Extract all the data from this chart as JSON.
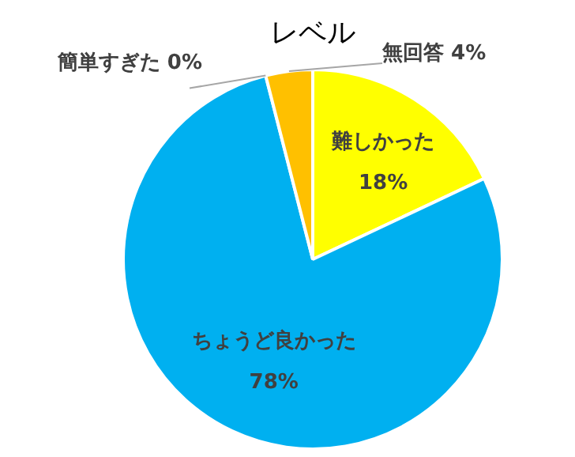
{
  "chart_data": {
    "type": "pie",
    "title": "レベル",
    "categories": [
      "難しかった",
      "ちょうど良かった",
      "簡単すぎた",
      "無回答"
    ],
    "values": [
      18,
      78,
      0,
      4
    ],
    "colors": [
      "#ffff00",
      "#00b0f0",
      "#a5a5a5",
      "#ffc000"
    ],
    "value_labels": [
      "18%",
      "78%",
      "0%",
      "4%"
    ],
    "legend": false
  }
}
